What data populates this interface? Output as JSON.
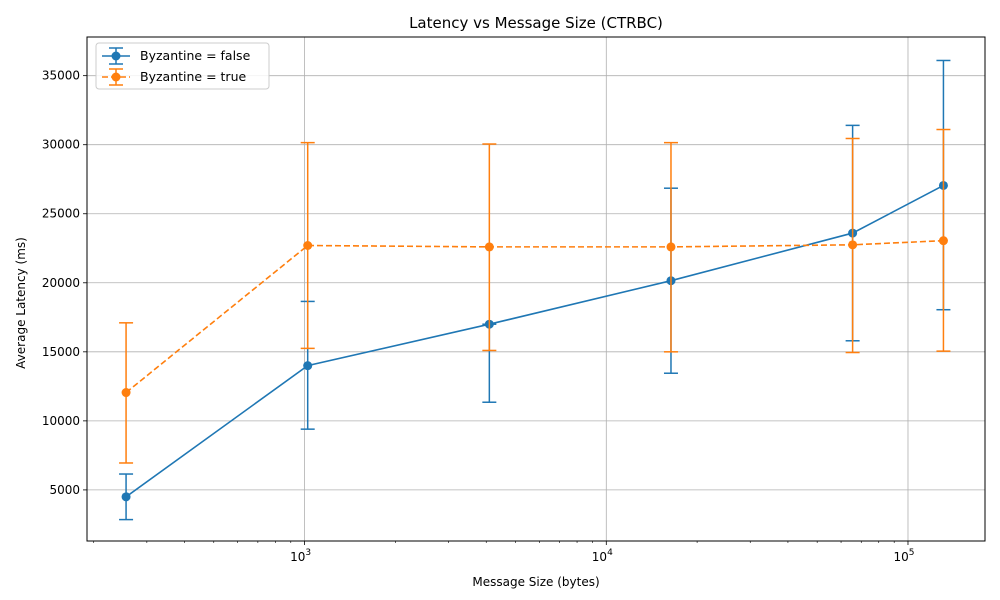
{
  "chart_data": {
    "type": "line",
    "title": "Latency vs Message Size (CTRBC)",
    "xlabel": "Message Size (bytes)",
    "ylabel": "Average Latency (ms)",
    "xscale": "log",
    "xlim": [
      190,
      180000
    ],
    "ylim": [
      1300,
      37800
    ],
    "grid": true,
    "legend_position": "top-left",
    "x": [
      256,
      1024,
      4096,
      16384,
      65536,
      131072
    ],
    "xticks": [
      {
        "value": 1000,
        "base": "10",
        "exp": "3"
      },
      {
        "value": 10000,
        "base": "10",
        "exp": "4"
      },
      {
        "value": 100000,
        "base": "10",
        "exp": "5"
      }
    ],
    "yticks": [
      {
        "value": 5000,
        "label": "5000"
      },
      {
        "value": 10000,
        "label": "10000"
      },
      {
        "value": 15000,
        "label": "15000"
      },
      {
        "value": 20000,
        "label": "20000"
      },
      {
        "value": 25000,
        "label": "25000"
      },
      {
        "value": 30000,
        "label": "30000"
      },
      {
        "value": 35000,
        "label": "35000"
      }
    ],
    "series": [
      {
        "name": "Byzantine = false",
        "color": "#1f77b4",
        "dash": "solid",
        "marker": "circle",
        "values": [
          4500,
          14000,
          17000,
          20150,
          23600,
          27050
        ],
        "err_low": [
          2850,
          9400,
          11350,
          13450,
          15800,
          18050
        ],
        "err_high": [
          6150,
          18650,
          17000,
          26850,
          31400,
          36100
        ]
      },
      {
        "name": "Byzantine = true",
        "color": "#ff7f0e",
        "dash": "dashed",
        "marker": "circle",
        "values": [
          12050,
          22700,
          22600,
          22600,
          22750,
          23050
        ],
        "err_low": [
          6950,
          15250,
          15100,
          15000,
          14950,
          15050
        ],
        "err_high": [
          17100,
          30150,
          30050,
          30150,
          30450,
          31100
        ]
      }
    ]
  }
}
